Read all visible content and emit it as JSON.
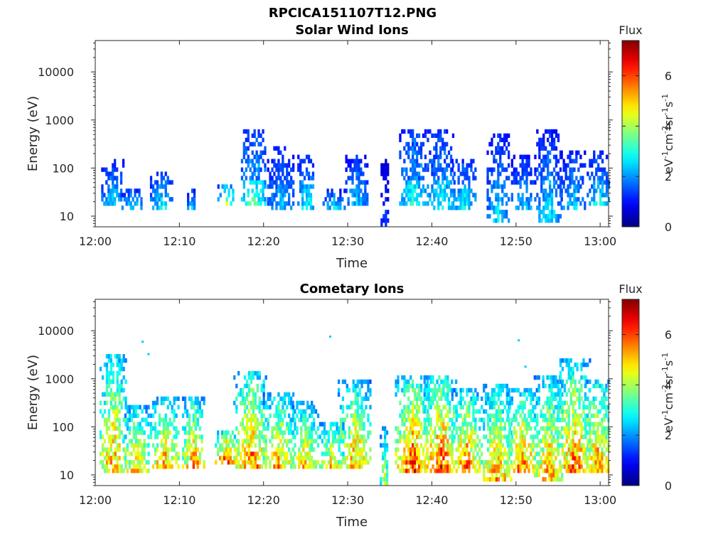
{
  "figure_title": "RPCICA151107T12.PNG",
  "chart_data": [
    {
      "type": "heatmap",
      "title": "Solar Wind Ions",
      "xlabel": "Time",
      "ylabel": "Energy (eV)",
      "x_ticks": [
        "12:00",
        "12:10",
        "12:20",
        "12:30",
        "12:40",
        "12:50",
        "13:00"
      ],
      "x_range_minutes": [
        0,
        61
      ],
      "y_scale": "log",
      "y_ticks": [
        "10",
        "100",
        "1000",
        "10000"
      ],
      "y_range": [
        6,
        45000
      ],
      "colorbar": {
        "label_top": "Flux",
        "unit_label": "eV-1cm-2sr-1s-1",
        "unit_parts": [
          "eV",
          "-1",
          "cm",
          "-2",
          "sr",
          "-1",
          "s",
          "-1"
        ],
        "range": [
          0,
          7.4
        ],
        "ticks": [
          "0",
          "2",
          "4",
          "6"
        ],
        "colormap": "jet"
      },
      "bursts": [
        {
          "t": 2.0,
          "lo": 15,
          "hi": 140,
          "peak": 2.8,
          "width": 1.3
        },
        {
          "t": 4.3,
          "lo": 13,
          "hi": 40,
          "peak": 3.0,
          "width": 1.2
        },
        {
          "t": 7.8,
          "lo": 13,
          "hi": 90,
          "peak": 3.1,
          "width": 1.3
        },
        {
          "t": 11.4,
          "lo": 13,
          "hi": 35,
          "peak": 3.0,
          "width": 0.5
        },
        {
          "t": 15.5,
          "lo": 16,
          "hi": 50,
          "peak": 4.3,
          "width": 1.0
        },
        {
          "t": 18.8,
          "lo": 16,
          "hi": 600,
          "peak": 3.5,
          "width": 1.5
        },
        {
          "t": 22.0,
          "lo": 13,
          "hi": 280,
          "peak": 2.6,
          "width": 1.6
        },
        {
          "t": 25.0,
          "lo": 13,
          "hi": 180,
          "peak": 3.3,
          "width": 1.0
        },
        {
          "t": 28.3,
          "lo": 13,
          "hi": 40,
          "peak": 2.8,
          "width": 1.3
        },
        {
          "t": 31.0,
          "lo": 16,
          "hi": 200,
          "peak": 2.6,
          "width": 1.3
        },
        {
          "t": 34.3,
          "lo": 6,
          "hi": 140,
          "peak": 1.6,
          "width": 0.4
        },
        {
          "t": 37.7,
          "lo": 15,
          "hi": 650,
          "peak": 3.3,
          "width": 1.6
        },
        {
          "t": 41.0,
          "lo": 13,
          "hi": 600,
          "peak": 3.2,
          "width": 1.6
        },
        {
          "t": 43.8,
          "lo": 13,
          "hi": 150,
          "peak": 3.1,
          "width": 1.5
        },
        {
          "t": 47.8,
          "lo": 7,
          "hi": 550,
          "peak": 2.8,
          "width": 1.3
        },
        {
          "t": 50.8,
          "lo": 13,
          "hi": 180,
          "peak": 2.6,
          "width": 1.4
        },
        {
          "t": 53.8,
          "lo": 7,
          "hi": 600,
          "peak": 2.9,
          "width": 1.4
        },
        {
          "t": 56.7,
          "lo": 13,
          "hi": 250,
          "peak": 2.7,
          "width": 1.4
        },
        {
          "t": 59.7,
          "lo": 15,
          "hi": 220,
          "peak": 3.0,
          "width": 1.3
        }
      ]
    },
    {
      "type": "heatmap",
      "title": "Cometary Ions",
      "xlabel": "Time",
      "ylabel": "Energy (eV)",
      "x_ticks": [
        "12:00",
        "12:10",
        "12:20",
        "12:30",
        "12:40",
        "12:50",
        "13:00"
      ],
      "x_range_minutes": [
        0,
        61
      ],
      "y_scale": "log",
      "y_ticks": [
        "10",
        "100",
        "1000",
        "10000"
      ],
      "y_range": [
        6,
        45000
      ],
      "colorbar": {
        "label_top": "Flux",
        "unit_label": "eV-1cm-2sr-1s-1",
        "unit_parts": [
          "eV",
          "-1",
          "cm",
          "-2",
          "sr",
          "-1",
          "s",
          "-1"
        ],
        "range": [
          0,
          7.4
        ],
        "ticks": [
          "0",
          "2",
          "4",
          "6"
        ],
        "colormap": "jet"
      },
      "bursts": [
        {
          "t": 2.1,
          "lo": 12,
          "hi": 3500,
          "peak": 5.9,
          "width": 1.6
        },
        {
          "t": 4.8,
          "lo": 11,
          "hi": 300,
          "peak": 5.6,
          "width": 1.6
        },
        {
          "t": 8.2,
          "lo": 13,
          "hi": 400,
          "peak": 6.0,
          "width": 1.7
        },
        {
          "t": 11.6,
          "lo": 13,
          "hi": 400,
          "peak": 6.1,
          "width": 1.3
        },
        {
          "t": 15.5,
          "lo": 16,
          "hi": 90,
          "peak": 6.9,
          "width": 1.3
        },
        {
          "t": 18.4,
          "lo": 13,
          "hi": 1500,
          "peak": 6.3,
          "width": 2.0
        },
        {
          "t": 21.7,
          "lo": 13,
          "hi": 500,
          "peak": 5.9,
          "width": 1.8
        },
        {
          "t": 24.8,
          "lo": 13,
          "hi": 350,
          "peak": 5.5,
          "width": 1.7
        },
        {
          "t": 28.0,
          "lo": 13,
          "hi": 130,
          "peak": 5.6,
          "width": 1.4
        },
        {
          "t": 30.8,
          "lo": 13,
          "hi": 900,
          "peak": 5.9,
          "width": 2.0
        },
        {
          "t": 34.3,
          "lo": 6,
          "hi": 100,
          "peak": 4.9,
          "width": 0.5
        },
        {
          "t": 37.6,
          "lo": 12,
          "hi": 1200,
          "peak": 6.6,
          "width": 2.0
        },
        {
          "t": 41.0,
          "lo": 12,
          "hi": 1200,
          "peak": 6.6,
          "width": 2.0
        },
        {
          "t": 44.0,
          "lo": 12,
          "hi": 600,
          "peak": 6.3,
          "width": 1.7
        },
        {
          "t": 47.6,
          "lo": 7,
          "hi": 800,
          "peak": 5.9,
          "width": 1.8
        },
        {
          "t": 50.7,
          "lo": 12,
          "hi": 600,
          "peak": 6.2,
          "width": 1.8
        },
        {
          "t": 53.8,
          "lo": 7,
          "hi": 1100,
          "peak": 5.9,
          "width": 1.7
        },
        {
          "t": 56.8,
          "lo": 12,
          "hi": 2500,
          "peak": 6.3,
          "width": 1.9
        },
        {
          "t": 59.6,
          "lo": 12,
          "hi": 1000,
          "peak": 6.1,
          "width": 1.5
        }
      ],
      "outliers": [
        {
          "t": 5.5,
          "e": 5800
        },
        {
          "t": 27.8,
          "e": 7400
        },
        {
          "t": 50.2,
          "e": 6200
        },
        {
          "t": 51.0,
          "e": 1750
        },
        {
          "t": 6.2,
          "e": 3200
        }
      ]
    }
  ]
}
